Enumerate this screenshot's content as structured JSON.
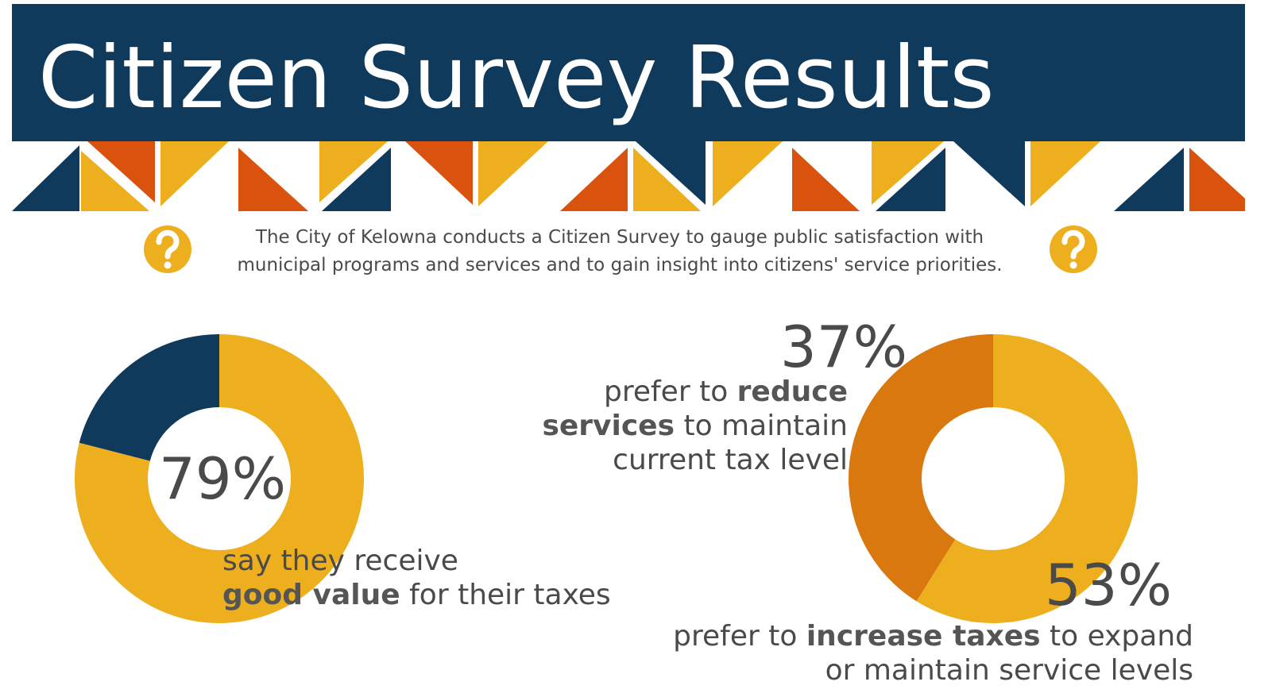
{
  "header": {
    "title": "Citizen Survey Results"
  },
  "intro": {
    "lines": [
      "The City of Kelowna conducts a Citizen Survey to gauge public satisfaction with",
      "municipal programs and services and to gain insight into citizens' service priorities."
    ]
  },
  "chart_data": [
    {
      "type": "donut",
      "values": [
        79,
        21
      ],
      "value_labels": [
        "79%",
        null
      ],
      "colors": [
        "#eeaf1f",
        "#0f3a5c"
      ],
      "annotations": [
        [
          [
            {
              "text": "say they receive"
            }
          ],
          [
            {
              "text": "good value",
              "bold": true
            },
            {
              "text": " for their taxes"
            }
          ]
        ]
      ]
    },
    {
      "type": "donut",
      "values": [
        53,
        37
      ],
      "value_labels": [
        "53%",
        "37%"
      ],
      "colors": [
        "#eeaf1f",
        "#d9780e"
      ],
      "annotations": [
        [
          [
            {
              "text": "prefer to "
            },
            {
              "text": "increase taxes",
              "bold": true
            },
            {
              "text": " to expand"
            }
          ],
          [
            {
              "text": "or maintain service levels"
            }
          ]
        ],
        [
          [
            {
              "text": "prefer to "
            },
            {
              "text": "reduce",
              "bold": true
            }
          ],
          [
            {
              "text": "services",
              "bold": true
            },
            {
              "text": " to maintain"
            }
          ],
          [
            {
              "text": "current tax level"
            }
          ]
        ]
      ]
    }
  ]
}
